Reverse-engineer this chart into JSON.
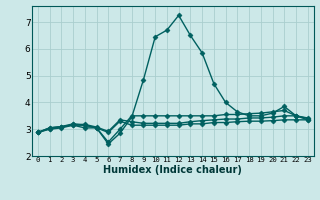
{
  "xlabel": "Humidex (Indice chaleur)",
  "background_color": "#cce8e8",
  "grid_color": "#aacece",
  "line_color": "#006060",
  "xlim": [
    -0.5,
    23.5
  ],
  "ylim": [
    2.0,
    7.6
  ],
  "yticks": [
    2,
    3,
    4,
    5,
    6,
    7
  ],
  "xticks": [
    0,
    1,
    2,
    3,
    4,
    5,
    6,
    7,
    8,
    9,
    10,
    11,
    12,
    13,
    14,
    15,
    16,
    17,
    18,
    19,
    20,
    21,
    22,
    23
  ],
  "xtick_labels": [
    "0",
    "1",
    "2",
    "3",
    "4",
    "5",
    "6",
    "7",
    "8",
    "9",
    "10",
    "11",
    "12",
    "13",
    "14",
    "15",
    "16",
    "17",
    "18",
    "19",
    "20",
    "21",
    "22",
    "23"
  ],
  "series": [
    [
      2.88,
      3.0,
      3.05,
      3.15,
      3.15,
      3.05,
      2.88,
      3.3,
      3.15,
      3.15,
      3.15,
      3.15,
      3.15,
      3.2,
      3.2,
      3.25,
      3.25,
      3.28,
      3.3,
      3.3,
      3.32,
      3.35,
      3.35,
      3.35
    ],
    [
      2.88,
      3.02,
      3.08,
      3.18,
      3.18,
      3.08,
      2.92,
      3.35,
      3.28,
      3.22,
      3.22,
      3.22,
      3.22,
      3.28,
      3.32,
      3.35,
      3.38,
      3.38,
      3.42,
      3.42,
      3.45,
      3.5,
      3.5,
      3.42
    ],
    [
      2.88,
      3.05,
      3.1,
      3.15,
      3.05,
      3.05,
      2.45,
      2.85,
      3.45,
      4.85,
      6.45,
      6.7,
      7.25,
      6.5,
      5.85,
      4.7,
      4.0,
      3.65,
      3.5,
      3.5,
      3.6,
      3.85,
      3.5,
      3.35
    ],
    [
      2.88,
      3.05,
      3.1,
      3.2,
      3.15,
      3.05,
      2.52,
      3.0,
      3.5,
      3.5,
      3.5,
      3.5,
      3.5,
      3.5,
      3.5,
      3.5,
      3.55,
      3.55,
      3.58,
      3.6,
      3.65,
      3.7,
      3.5,
      3.4
    ]
  ],
  "marker": "D",
  "markersize": 2.5,
  "linewidth": 1.0
}
